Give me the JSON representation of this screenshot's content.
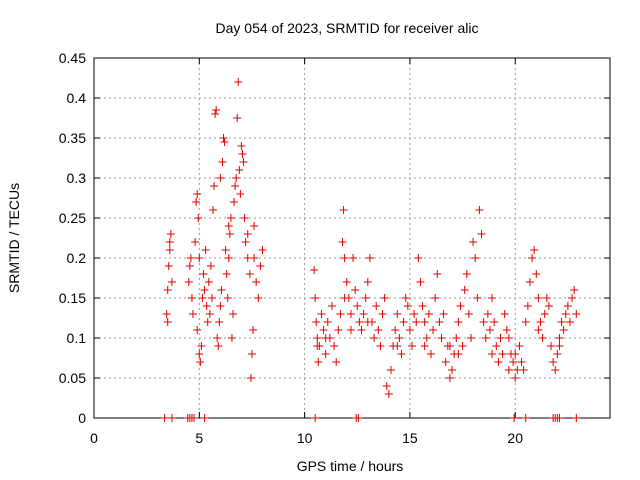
{
  "chart_data": {
    "type": "scatter",
    "title": "Day 054 of 2023, SRMTID for receiver alic",
    "xlabel": "GPS time / hours",
    "ylabel": "SRMTID / TECUs",
    "xlim": [
      0,
      24.5
    ],
    "ylim": [
      0,
      0.45
    ],
    "xticks": [
      0,
      5,
      10,
      15,
      20
    ],
    "yticks": [
      0,
      0.05,
      0.1,
      0.15,
      0.2,
      0.25,
      0.3,
      0.35,
      0.4,
      0.45
    ],
    "xtick_labels": [
      "0",
      "5",
      "10",
      "15",
      "20"
    ],
    "ytick_labels": [
      "0",
      "0.05",
      "0.1",
      "0.15",
      "0.2",
      "0.25",
      "0.3",
      "0.35",
      "0.4",
      "0.45"
    ],
    "grid": true,
    "marker": "+",
    "color": "#e00000",
    "series": [
      {
        "name": "",
        "points": [
          [
            3.45,
            0.13
          ],
          [
            3.5,
            0.16
          ],
          [
            3.55,
            0.19
          ],
          [
            3.6,
            0.21
          ],
          [
            3.65,
            0.23
          ],
          [
            3.7,
            0.17
          ],
          [
            3.5,
            0.12
          ],
          [
            3.6,
            0.22
          ],
          [
            4.5,
            0.17
          ],
          [
            4.55,
            0.19
          ],
          [
            4.6,
            0.2
          ],
          [
            4.65,
            0.15
          ],
          [
            4.7,
            0.13
          ],
          [
            4.8,
            0.22
          ],
          [
            4.85,
            0.27
          ],
          [
            4.9,
            0.28
          ],
          [
            4.95,
            0.25
          ],
          [
            5.0,
            0.2
          ],
          [
            4.9,
            0.11
          ],
          [
            5.0,
            0.08
          ],
          [
            5.05,
            0.07
          ],
          [
            5.1,
            0.09
          ],
          [
            5.15,
            0.15
          ],
          [
            5.2,
            0.18
          ],
          [
            5.25,
            0.16
          ],
          [
            5.3,
            0.21
          ],
          [
            5.35,
            0.14
          ],
          [
            5.4,
            0.12
          ],
          [
            5.45,
            0.17
          ],
          [
            5.5,
            0.13
          ],
          [
            5.55,
            0.19
          ],
          [
            5.6,
            0.15
          ],
          [
            5.65,
            0.26
          ],
          [
            5.7,
            0.29
          ],
          [
            5.75,
            0.38
          ],
          [
            5.8,
            0.385
          ],
          [
            5.85,
            0.1
          ],
          [
            5.9,
            0.09
          ],
          [
            5.95,
            0.12
          ],
          [
            6.0,
            0.14
          ],
          [
            6.05,
            0.16
          ],
          [
            6.1,
            0.32
          ],
          [
            6.15,
            0.35
          ],
          [
            6.2,
            0.345
          ],
          [
            6.25,
            0.21
          ],
          [
            6.3,
            0.18
          ],
          [
            6.35,
            0.15
          ],
          [
            6.4,
            0.2
          ],
          [
            6.45,
            0.23
          ],
          [
            6.5,
            0.25
          ],
          [
            6.55,
            0.1
          ],
          [
            6.6,
            0.13
          ],
          [
            6.65,
            0.27
          ],
          [
            6.7,
            0.29
          ],
          [
            6.75,
            0.3
          ],
          [
            6.8,
            0.375
          ],
          [
            6.85,
            0.42
          ],
          [
            6.9,
            0.31
          ],
          [
            6.95,
            0.28
          ],
          [
            7.0,
            0.34
          ],
          [
            7.05,
            0.33
          ],
          [
            7.1,
            0.32
          ],
          [
            7.15,
            0.25
          ],
          [
            7.2,
            0.22
          ],
          [
            7.3,
            0.2
          ],
          [
            7.4,
            0.18
          ],
          [
            7.45,
            0.05
          ],
          [
            7.5,
            0.08
          ],
          [
            7.55,
            0.11
          ],
          [
            7.6,
            0.2
          ],
          [
            7.7,
            0.17
          ],
          [
            7.8,
            0.15
          ],
          [
            7.9,
            0.19
          ],
          [
            8.0,
            0.21
          ],
          [
            7.6,
            0.24
          ],
          [
            7.3,
            0.23
          ],
          [
            6.4,
            0.24
          ],
          [
            6.0,
            0.3
          ],
          [
            10.45,
            0.185
          ],
          [
            10.5,
            0.15
          ],
          [
            10.55,
            0.12
          ],
          [
            10.6,
            0.1
          ],
          [
            10.65,
            0.07
          ],
          [
            10.7,
            0.09
          ],
          [
            10.8,
            0.13
          ],
          [
            10.9,
            0.11
          ],
          [
            11.0,
            0.08
          ],
          [
            11.1,
            0.12
          ],
          [
            11.2,
            0.1
          ],
          [
            11.3,
            0.14
          ],
          [
            11.4,
            0.09
          ],
          [
            11.5,
            0.07
          ],
          [
            11.6,
            0.11
          ],
          [
            11.7,
            0.13
          ],
          [
            11.8,
            0.22
          ],
          [
            11.85,
            0.26
          ],
          [
            11.9,
            0.2
          ],
          [
            12.0,
            0.17
          ],
          [
            12.1,
            0.15
          ],
          [
            12.2,
            0.13
          ],
          [
            12.3,
            0.2
          ],
          [
            12.4,
            0.16
          ],
          [
            12.5,
            0.14
          ],
          [
            12.6,
            0.12
          ],
          [
            12.7,
            0.11
          ],
          [
            12.8,
            0.13
          ],
          [
            12.9,
            0.15
          ],
          [
            13.0,
            0.17
          ],
          [
            13.1,
            0.2
          ],
          [
            13.2,
            0.12
          ],
          [
            13.3,
            0.1
          ],
          [
            13.4,
            0.14
          ],
          [
            13.5,
            0.11
          ],
          [
            13.6,
            0.09
          ],
          [
            13.7,
            0.13
          ],
          [
            13.8,
            0.15
          ],
          [
            13.9,
            0.04
          ],
          [
            14.0,
            0.03
          ],
          [
            14.1,
            0.06
          ],
          [
            14.2,
            0.09
          ],
          [
            14.3,
            0.11
          ],
          [
            14.4,
            0.13
          ],
          [
            14.5,
            0.1
          ],
          [
            14.6,
            0.08
          ],
          [
            14.7,
            0.12
          ],
          [
            14.8,
            0.15
          ],
          [
            14.9,
            0.14
          ],
          [
            15.0,
            0.11
          ],
          [
            15.1,
            0.09
          ],
          [
            15.2,
            0.13
          ],
          [
            15.3,
            0.12
          ],
          [
            15.4,
            0.2
          ],
          [
            15.5,
            0.17
          ],
          [
            15.6,
            0.14
          ],
          [
            15.7,
            0.12
          ],
          [
            15.8,
            0.1
          ],
          [
            15.9,
            0.13
          ],
          [
            16.0,
            0.08
          ],
          [
            16.1,
            0.11
          ],
          [
            16.2,
            0.15
          ],
          [
            16.3,
            0.18
          ],
          [
            16.4,
            0.12
          ],
          [
            16.5,
            0.1
          ],
          [
            16.6,
            0.13
          ],
          [
            16.7,
            0.07
          ],
          [
            16.8,
            0.09
          ],
          [
            16.9,
            0.05
          ],
          [
            17.0,
            0.06
          ],
          [
            17.1,
            0.08
          ],
          [
            17.2,
            0.1
          ],
          [
            17.3,
            0.12
          ],
          [
            17.4,
            0.14
          ],
          [
            17.5,
            0.09
          ],
          [
            17.6,
            0.16
          ],
          [
            17.7,
            0.18
          ],
          [
            17.8,
            0.13
          ],
          [
            17.9,
            0.1
          ],
          [
            18.0,
            0.22
          ],
          [
            18.1,
            0.2
          ],
          [
            18.2,
            0.15
          ],
          [
            18.3,
            0.26
          ],
          [
            18.4,
            0.23
          ],
          [
            18.5,
            0.12
          ],
          [
            18.6,
            0.1
          ],
          [
            18.7,
            0.13
          ],
          [
            18.8,
            0.11
          ],
          [
            18.9,
            0.15
          ],
          [
            19.0,
            0.12
          ],
          [
            19.1,
            0.09
          ],
          [
            19.2,
            0.07
          ],
          [
            19.3,
            0.1
          ],
          [
            19.4,
            0.08
          ],
          [
            19.5,
            0.13
          ],
          [
            19.6,
            0.11
          ],
          [
            19.7,
            0.06
          ],
          [
            19.8,
            0.08
          ],
          [
            19.9,
            0.07
          ],
          [
            20.0,
            0.05
          ],
          [
            20.1,
            0.06
          ],
          [
            20.2,
            0.09
          ],
          [
            20.3,
            0.07
          ],
          [
            20.4,
            0.06
          ],
          [
            20.5,
            0.12
          ],
          [
            20.6,
            0.14
          ],
          [
            20.7,
            0.17
          ],
          [
            20.8,
            0.2
          ],
          [
            20.9,
            0.21
          ],
          [
            21.0,
            0.18
          ],
          [
            21.1,
            0.15
          ],
          [
            21.2,
            0.12
          ],
          [
            21.3,
            0.1
          ],
          [
            21.4,
            0.13
          ],
          [
            21.5,
            0.15
          ],
          [
            21.6,
            0.14
          ],
          [
            21.7,
            0.09
          ],
          [
            21.8,
            0.07
          ],
          [
            21.9,
            0.06
          ],
          [
            22.0,
            0.08
          ],
          [
            22.1,
            0.1
          ],
          [
            22.2,
            0.12
          ],
          [
            22.3,
            0.11
          ],
          [
            22.4,
            0.13
          ],
          [
            22.5,
            0.14
          ],
          [
            22.6,
            0.12
          ],
          [
            22.7,
            0.15
          ],
          [
            22.8,
            0.16
          ],
          [
            22.9,
            0.13
          ],
          [
            10.6,
            0.09
          ],
          [
            11.0,
            0.1
          ],
          [
            11.9,
            0.15
          ],
          [
            12.2,
            0.11
          ],
          [
            13.0,
            0.12
          ],
          [
            14.4,
            0.09
          ],
          [
            15.7,
            0.09
          ],
          [
            16.9,
            0.09
          ],
          [
            17.3,
            0.08
          ],
          [
            18.9,
            0.08
          ],
          [
            19.7,
            0.1
          ],
          [
            20.0,
            0.08
          ],
          [
            21.1,
            0.11
          ],
          [
            22.1,
            0.09
          ]
        ]
      },
      {
        "name": "",
        "points": [
          [
            3.35,
            0
          ],
          [
            3.7,
            0
          ],
          [
            4.45,
            0
          ],
          [
            4.55,
            0
          ],
          [
            4.65,
            0
          ],
          [
            4.75,
            0
          ],
          [
            5.25,
            0
          ],
          [
            10.5,
            0
          ],
          [
            12.45,
            0
          ],
          [
            12.55,
            0
          ],
          [
            19.95,
            0
          ],
          [
            20.5,
            0
          ],
          [
            21.8,
            0
          ],
          [
            21.9,
            0
          ],
          [
            22.0,
            0
          ],
          [
            22.1,
            0
          ],
          [
            22.9,
            0
          ]
        ]
      }
    ]
  }
}
